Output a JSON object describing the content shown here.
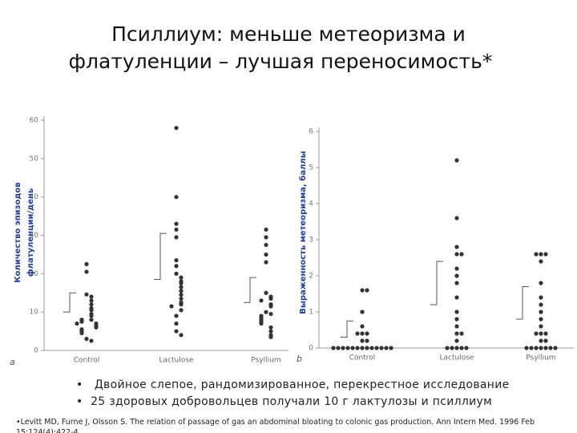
{
  "header": {
    "title_lines": [
      "Псиллиум: меньше метеоризма и",
      "флатуленции – лучшая переносимость*"
    ]
  },
  "chart_data": [
    {
      "type": "dotplot",
      "panel_label": "a",
      "ylabel_lines": [
        "Количество эпизодов",
        "флатуленции/день"
      ],
      "categories": [
        "Control",
        "Lactulose",
        "Psyllium"
      ],
      "values": [
        [
          22.5,
          20.5,
          14.6,
          14.0,
          13.0,
          12.0,
          11.0,
          10.5,
          9.5,
          9.0,
          8.0,
          8.0,
          7.5,
          7.0,
          7.0,
          6.5,
          6.0,
          5.5,
          5.0,
          4.5,
          3.0,
          2.5
        ],
        [
          58,
          40,
          33,
          31.5,
          29.5,
          23.5,
          22,
          20,
          19,
          18,
          17.5,
          16.5,
          15.5,
          14.5,
          13.5,
          12.5,
          12,
          11.5,
          10.5,
          9,
          7,
          5,
          4
        ],
        [
          31.5,
          29.5,
          27.5,
          25,
          23,
          15,
          14,
          13.5,
          13,
          12,
          11.5,
          10,
          9.5,
          9,
          8.5,
          8,
          7.5,
          7,
          6,
          5,
          4,
          3.5
        ]
      ],
      "means": [
        10,
        18.5,
        12.5
      ],
      "sd": [
        5,
        12,
        6.5
      ],
      "ylim": [
        0,
        60
      ],
      "yticks": [
        0,
        10,
        20,
        30,
        40,
        50,
        60
      ],
      "color": "#333333"
    },
    {
      "type": "dotplot",
      "panel_label": "b",
      "ylabel_lines": [
        "Выраженность метеоризма, баллы"
      ],
      "categories": [
        "Control",
        "Lactulose",
        "Psyllium"
      ],
      "values": [
        [
          0,
          0,
          0,
          0,
          0,
          0,
          0,
          0,
          0,
          0,
          0,
          0,
          0,
          0.2,
          0.2,
          0.4,
          0.4,
          0.4,
          0.6,
          1.0,
          1.6,
          1.6
        ],
        [
          0,
          0,
          0,
          0,
          0,
          0.2,
          0.4,
          0.4,
          0.6,
          0.8,
          1.0,
          1.4,
          1.8,
          2.0,
          2.2,
          2.6,
          2.6,
          2.8,
          3.6,
          5.2
        ],
        [
          0,
          0,
          0,
          0,
          0,
          0,
          0,
          0.2,
          0.2,
          0.4,
          0.4,
          0.4,
          0.6,
          0.8,
          1.0,
          1.2,
          1.4,
          1.8,
          2.4,
          2.6,
          2.6,
          2.6
        ]
      ],
      "means": [
        0.3,
        1.2,
        0.8
      ],
      "sd": [
        0.45,
        1.2,
        0.9
      ],
      "ylim": [
        0,
        6
      ],
      "yticks": [
        0,
        1,
        2,
        3,
        4,
        5,
        6
      ],
      "color": "#333333"
    }
  ],
  "bullets": [
    "Двойное слепое, рандомизированное,  перекрестное исследование",
    "25 здоровых добровольцев получали 10 г лактулозы и  псиллиум"
  ],
  "footnote": "•Levitt MD, Furne J, Olsson S. The relation of passage of gas an abdominal bloating to colonic gas production. Ann Intern Med. 1996 Feb 15;124(4):422-4."
}
